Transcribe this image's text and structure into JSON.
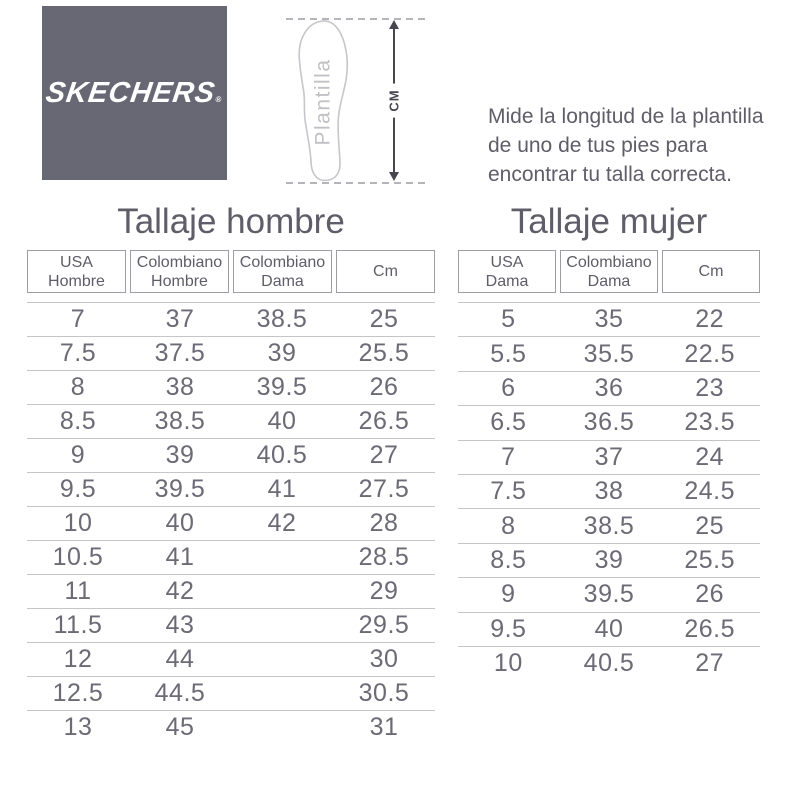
{
  "brand": {
    "logo_text": "SKECHERS",
    "registered_mark": "®"
  },
  "diagram": {
    "insole_label": "Plantilla",
    "arrow_label": "CM"
  },
  "instructions": "Mide la longitud de la plantilla\nde uno de tus pies para\nencontrar tu talla correcta.",
  "men_table": {
    "title": "Tallaje hombre",
    "headers": [
      "USA\nHombre",
      "Colombiano\nHombre",
      "Colombiano\nDama",
      "Cm"
    ],
    "rows": [
      [
        "7",
        "37",
        "38.5",
        "25"
      ],
      [
        "7.5",
        "37.5",
        "39",
        "25.5"
      ],
      [
        "8",
        "38",
        "39.5",
        "26"
      ],
      [
        "8.5",
        "38.5",
        "40",
        "26.5"
      ],
      [
        "9",
        "39",
        "40.5",
        "27"
      ],
      [
        "9.5",
        "39.5",
        "41",
        "27.5"
      ],
      [
        "10",
        "40",
        "42",
        "28"
      ],
      [
        "10.5",
        "41",
        "",
        "28.5"
      ],
      [
        "11",
        "42",
        "",
        "29"
      ],
      [
        "11.5",
        "43",
        "",
        "29.5"
      ],
      [
        "12",
        "44",
        "",
        "30"
      ],
      [
        "12.5",
        "44.5",
        "",
        "30.5"
      ],
      [
        "13",
        "45",
        "",
        "31"
      ]
    ]
  },
  "women_table": {
    "title": "Tallaje mujer",
    "headers": [
      "USA\nDama",
      "Colombiano\nDama",
      "Cm"
    ],
    "rows": [
      [
        "5",
        "35",
        "22"
      ],
      [
        "5.5",
        "35.5",
        "22.5"
      ],
      [
        "6",
        "36",
        "23"
      ],
      [
        "6.5",
        "36.5",
        "23.5"
      ],
      [
        "7",
        "37",
        "24"
      ],
      [
        "7.5",
        "38",
        "24.5"
      ],
      [
        "8",
        "38.5",
        "25"
      ],
      [
        "8.5",
        "39",
        "25.5"
      ],
      [
        "9",
        "39.5",
        "26"
      ],
      [
        "9.5",
        "40",
        "26.5"
      ],
      [
        "10",
        "40.5",
        "27"
      ]
    ]
  },
  "colors": {
    "brand_box": "#686774",
    "text": "#5e5d68",
    "numbers": "#6b6a75",
    "table_line": "#c5c5c9",
    "header_border": "#9d9da3"
  }
}
